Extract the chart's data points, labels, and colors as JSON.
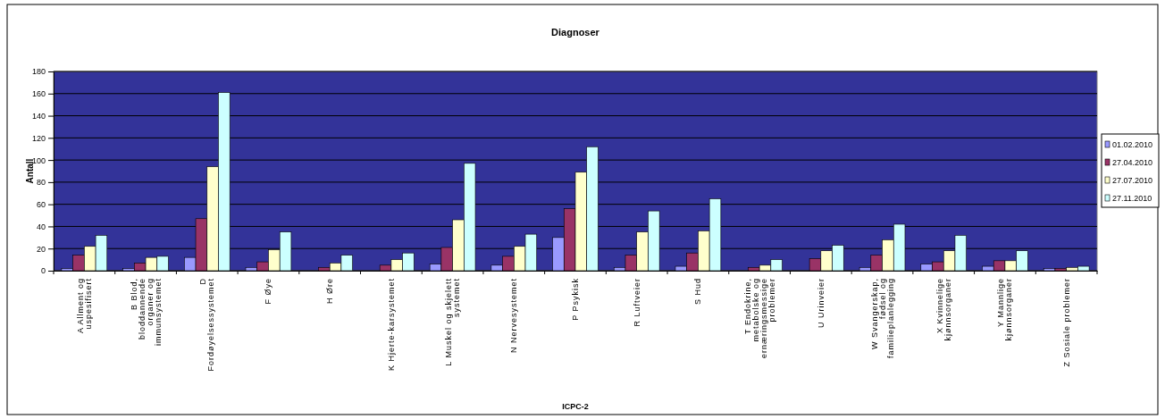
{
  "chart_data": {
    "type": "bar",
    "title": "Diagnoser",
    "xlabel": "ICPC-2",
    "ylabel": "Antall",
    "categories": [
      "A Allment og\nuspesifisert",
      "B Blod,\nbloddannende\norganer og\nimmunsystemet",
      "D\nFordøyelsessystemet",
      "F Øye",
      "H Øre",
      "K Hjerte-karsystemet",
      "L Muskel og skjelett\nsystemet",
      "N Nervesystemet",
      "P Psykisk",
      "R Luftveier",
      "S Hud",
      "T Endokrine,\nmetabolske og\nernæringsmessige\nproblemer",
      "U Urinveier",
      "W Svangerskap,\nfødsel og\nfamilieplanlegging",
      "X Kvinnelige\nkjønnsorganer",
      "Y Mannlige\nkjønnsorganer",
      "Z Sosiale problemer"
    ],
    "series": [
      {
        "name": "01.02.2010",
        "color": "#9999ff",
        "values": [
          2,
          2,
          12,
          3,
          0,
          0,
          6,
          5,
          30,
          3,
          4,
          0,
          0,
          3,
          6,
          4,
          2
        ]
      },
      {
        "name": "27.04.2010",
        "color": "#993366",
        "values": [
          14,
          7,
          47,
          8,
          3,
          5,
          21,
          13,
          56,
          14,
          16,
          3,
          11,
          14,
          8,
          9,
          2
        ]
      },
      {
        "name": "27.07.2010",
        "color": "#ffffcc",
        "values": [
          22,
          12,
          94,
          19,
          7,
          10,
          46,
          22,
          89,
          35,
          36,
          5,
          18,
          28,
          18,
          9,
          3
        ]
      },
      {
        "name": "27.11.2010",
        "color": "#ccffff",
        "values": [
          32,
          13,
          161,
          35,
          14,
          16,
          97,
          33,
          112,
          54,
          65,
          10,
          23,
          42,
          32,
          18,
          4
        ]
      }
    ],
    "ylim": [
      0,
      180
    ],
    "yticks": [
      0,
      20,
      40,
      60,
      80,
      100,
      120,
      140,
      160,
      180
    ],
    "grid": "y",
    "legend": "right"
  }
}
